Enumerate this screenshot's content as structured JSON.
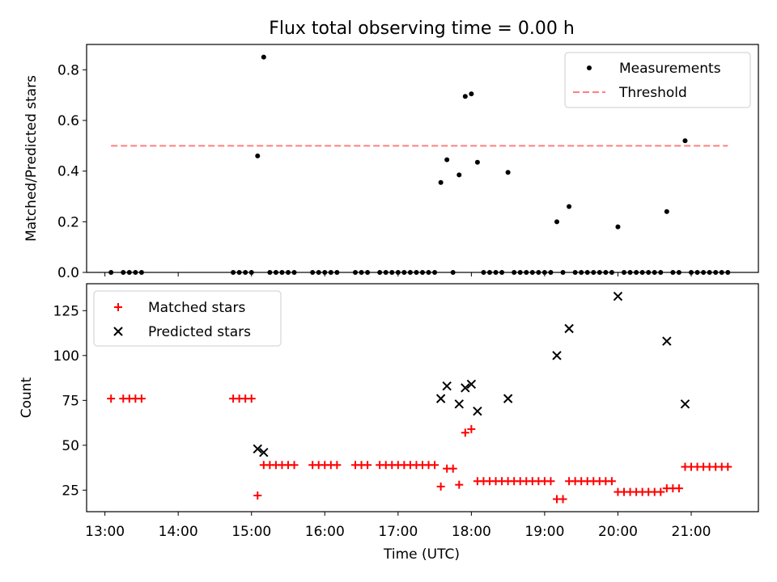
{
  "chart_data": [
    {
      "type": "scatter",
      "title": "Flux total observing time = 0.00 h",
      "xlabel": "",
      "ylabel": "Matched/Predicted stars",
      "xlim": [
        "12:45",
        "21:55"
      ],
      "ylim": [
        0,
        0.9
      ],
      "yticks": [
        "0.0",
        "0.2",
        "0.4",
        "0.6",
        "0.8"
      ],
      "legend": {
        "placement": "top-right",
        "entries": [
          "Measurements",
          "Threshold"
        ]
      },
      "series": [
        {
          "name": "Measurements",
          "marker": "dot",
          "color": "#000000",
          "points": [
            [
              "13:05",
              0.0
            ],
            [
              "13:15",
              0.0
            ],
            [
              "13:20",
              0.0
            ],
            [
              "13:25",
              0.0
            ],
            [
              "13:30",
              0.0
            ],
            [
              "14:45",
              0.0
            ],
            [
              "14:50",
              0.0
            ],
            [
              "14:55",
              0.0
            ],
            [
              "15:00",
              0.0
            ],
            [
              "15:05",
              0.46
            ],
            [
              "15:10",
              0.85
            ],
            [
              "15:15",
              0.0
            ],
            [
              "15:20",
              0.0
            ],
            [
              "15:25",
              0.0
            ],
            [
              "15:30",
              0.0
            ],
            [
              "15:35",
              0.0
            ],
            [
              "15:50",
              0.0
            ],
            [
              "15:55",
              0.0
            ],
            [
              "16:00",
              0.0
            ],
            [
              "16:05",
              0.0
            ],
            [
              "16:10",
              0.0
            ],
            [
              "16:25",
              0.0
            ],
            [
              "16:30",
              0.0
            ],
            [
              "16:35",
              0.0
            ],
            [
              "16:45",
              0.0
            ],
            [
              "16:50",
              0.0
            ],
            [
              "16:55",
              0.0
            ],
            [
              "17:00",
              0.0
            ],
            [
              "17:05",
              0.0
            ],
            [
              "17:10",
              0.0
            ],
            [
              "17:15",
              0.0
            ],
            [
              "17:20",
              0.0
            ],
            [
              "17:25",
              0.0
            ],
            [
              "17:30",
              0.0
            ],
            [
              "17:35",
              0.355
            ],
            [
              "17:40",
              0.445
            ],
            [
              "17:45",
              0.0
            ],
            [
              "17:50",
              0.385
            ],
            [
              "17:55",
              0.695
            ],
            [
              "18:00",
              0.705
            ],
            [
              "18:05",
              0.435
            ],
            [
              "18:10",
              0.0
            ],
            [
              "18:15",
              0.0
            ],
            [
              "18:20",
              0.0
            ],
            [
              "18:25",
              0.0
            ],
            [
              "18:30",
              0.395
            ],
            [
              "18:35",
              0.0
            ],
            [
              "18:40",
              0.0
            ],
            [
              "18:45",
              0.0
            ],
            [
              "18:50",
              0.0
            ],
            [
              "18:55",
              0.0
            ],
            [
              "19:00",
              0.0
            ],
            [
              "19:05",
              0.0
            ],
            [
              "19:10",
              0.2
            ],
            [
              "19:15",
              0.0
            ],
            [
              "19:20",
              0.26
            ],
            [
              "19:25",
              0.0
            ],
            [
              "19:30",
              0.0
            ],
            [
              "19:35",
              0.0
            ],
            [
              "19:40",
              0.0
            ],
            [
              "19:45",
              0.0
            ],
            [
              "19:50",
              0.0
            ],
            [
              "19:55",
              0.0
            ],
            [
              "20:00",
              0.18
            ],
            [
              "20:05",
              0.0
            ],
            [
              "20:10",
              0.0
            ],
            [
              "20:15",
              0.0
            ],
            [
              "20:20",
              0.0
            ],
            [
              "20:25",
              0.0
            ],
            [
              "20:30",
              0.0
            ],
            [
              "20:35",
              0.0
            ],
            [
              "20:40",
              0.24
            ],
            [
              "20:45",
              0.0
            ],
            [
              "20:50",
              0.0
            ],
            [
              "20:55",
              0.52
            ],
            [
              "21:00",
              0.0
            ],
            [
              "21:05",
              0.0
            ],
            [
              "21:10",
              0.0
            ],
            [
              "21:15",
              0.0
            ],
            [
              "21:20",
              0.0
            ],
            [
              "21:25",
              0.0
            ],
            [
              "21:30",
              0.0
            ]
          ]
        },
        {
          "name": "Threshold",
          "style": "dashed",
          "color": "#ff7f7f",
          "points": [
            [
              "13:05",
              0.5
            ],
            [
              "21:30",
              0.5
            ]
          ]
        }
      ]
    },
    {
      "type": "scatter",
      "title": "",
      "xlabel": "Time (UTC)",
      "ylabel": "Count",
      "xlim": [
        "12:45",
        "21:55"
      ],
      "ylim": [
        13,
        140
      ],
      "xticks": [
        "13:00",
        "14:00",
        "15:00",
        "16:00",
        "17:00",
        "18:00",
        "19:00",
        "20:00",
        "21:00"
      ],
      "yticks": [
        "25",
        "50",
        "75",
        "100",
        "125"
      ],
      "legend": {
        "placement": "top-left",
        "entries": [
          "Matched stars",
          "Predicted stars"
        ]
      },
      "series": [
        {
          "name": "Matched stars",
          "marker": "plus",
          "color": "#ff0000",
          "points": [
            [
              "13:05",
              76
            ],
            [
              "13:15",
              76
            ],
            [
              "13:20",
              76
            ],
            [
              "13:25",
              76
            ],
            [
              "13:30",
              76
            ],
            [
              "14:45",
              76
            ],
            [
              "14:50",
              76
            ],
            [
              "14:55",
              76
            ],
            [
              "15:00",
              76
            ],
            [
              "15:05",
              22
            ],
            [
              "15:10",
              39
            ],
            [
              "15:15",
              39
            ],
            [
              "15:20",
              39
            ],
            [
              "15:25",
              39
            ],
            [
              "15:30",
              39
            ],
            [
              "15:35",
              39
            ],
            [
              "15:50",
              39
            ],
            [
              "15:55",
              39
            ],
            [
              "16:00",
              39
            ],
            [
              "16:05",
              39
            ],
            [
              "16:10",
              39
            ],
            [
              "16:25",
              39
            ],
            [
              "16:30",
              39
            ],
            [
              "16:35",
              39
            ],
            [
              "16:45",
              39
            ],
            [
              "16:50",
              39
            ],
            [
              "16:55",
              39
            ],
            [
              "17:00",
              39
            ],
            [
              "17:05",
              39
            ],
            [
              "17:10",
              39
            ],
            [
              "17:15",
              39
            ],
            [
              "17:20",
              39
            ],
            [
              "17:25",
              39
            ],
            [
              "17:30",
              39
            ],
            [
              "17:35",
              27
            ],
            [
              "17:40",
              37
            ],
            [
              "17:45",
              37
            ],
            [
              "17:50",
              28
            ],
            [
              "17:55",
              57
            ],
            [
              "18:00",
              59
            ],
            [
              "18:05",
              30
            ],
            [
              "18:10",
              30
            ],
            [
              "18:15",
              30
            ],
            [
              "18:20",
              30
            ],
            [
              "18:25",
              30
            ],
            [
              "18:30",
              30
            ],
            [
              "18:35",
              30
            ],
            [
              "18:40",
              30
            ],
            [
              "18:45",
              30
            ],
            [
              "18:50",
              30
            ],
            [
              "18:55",
              30
            ],
            [
              "19:00",
              30
            ],
            [
              "19:05",
              30
            ],
            [
              "19:10",
              20
            ],
            [
              "19:15",
              20
            ],
            [
              "19:20",
              30
            ],
            [
              "19:25",
              30
            ],
            [
              "19:30",
              30
            ],
            [
              "19:35",
              30
            ],
            [
              "19:40",
              30
            ],
            [
              "19:45",
              30
            ],
            [
              "19:50",
              30
            ],
            [
              "19:55",
              30
            ],
            [
              "20:00",
              24
            ],
            [
              "20:05",
              24
            ],
            [
              "20:10",
              24
            ],
            [
              "20:15",
              24
            ],
            [
              "20:20",
              24
            ],
            [
              "20:25",
              24
            ],
            [
              "20:30",
              24
            ],
            [
              "20:35",
              24
            ],
            [
              "20:40",
              26
            ],
            [
              "20:45",
              26
            ],
            [
              "20:50",
              26
            ],
            [
              "20:55",
              38
            ],
            [
              "21:00",
              38
            ],
            [
              "21:05",
              38
            ],
            [
              "21:10",
              38
            ],
            [
              "21:15",
              38
            ],
            [
              "21:20",
              38
            ],
            [
              "21:25",
              38
            ],
            [
              "21:30",
              38
            ]
          ]
        },
        {
          "name": "Predicted stars",
          "marker": "x",
          "color": "#000000",
          "points": [
            [
              "15:05",
              48
            ],
            [
              "15:10",
              46
            ],
            [
              "17:35",
              76
            ],
            [
              "17:40",
              83
            ],
            [
              "17:50",
              73
            ],
            [
              "17:55",
              82
            ],
            [
              "18:00",
              84
            ],
            [
              "18:05",
              69
            ],
            [
              "18:30",
              76
            ],
            [
              "19:10",
              100
            ],
            [
              "19:20",
              115
            ],
            [
              "20:00",
              133
            ],
            [
              "20:40",
              108
            ],
            [
              "20:55",
              73
            ]
          ]
        }
      ]
    }
  ]
}
